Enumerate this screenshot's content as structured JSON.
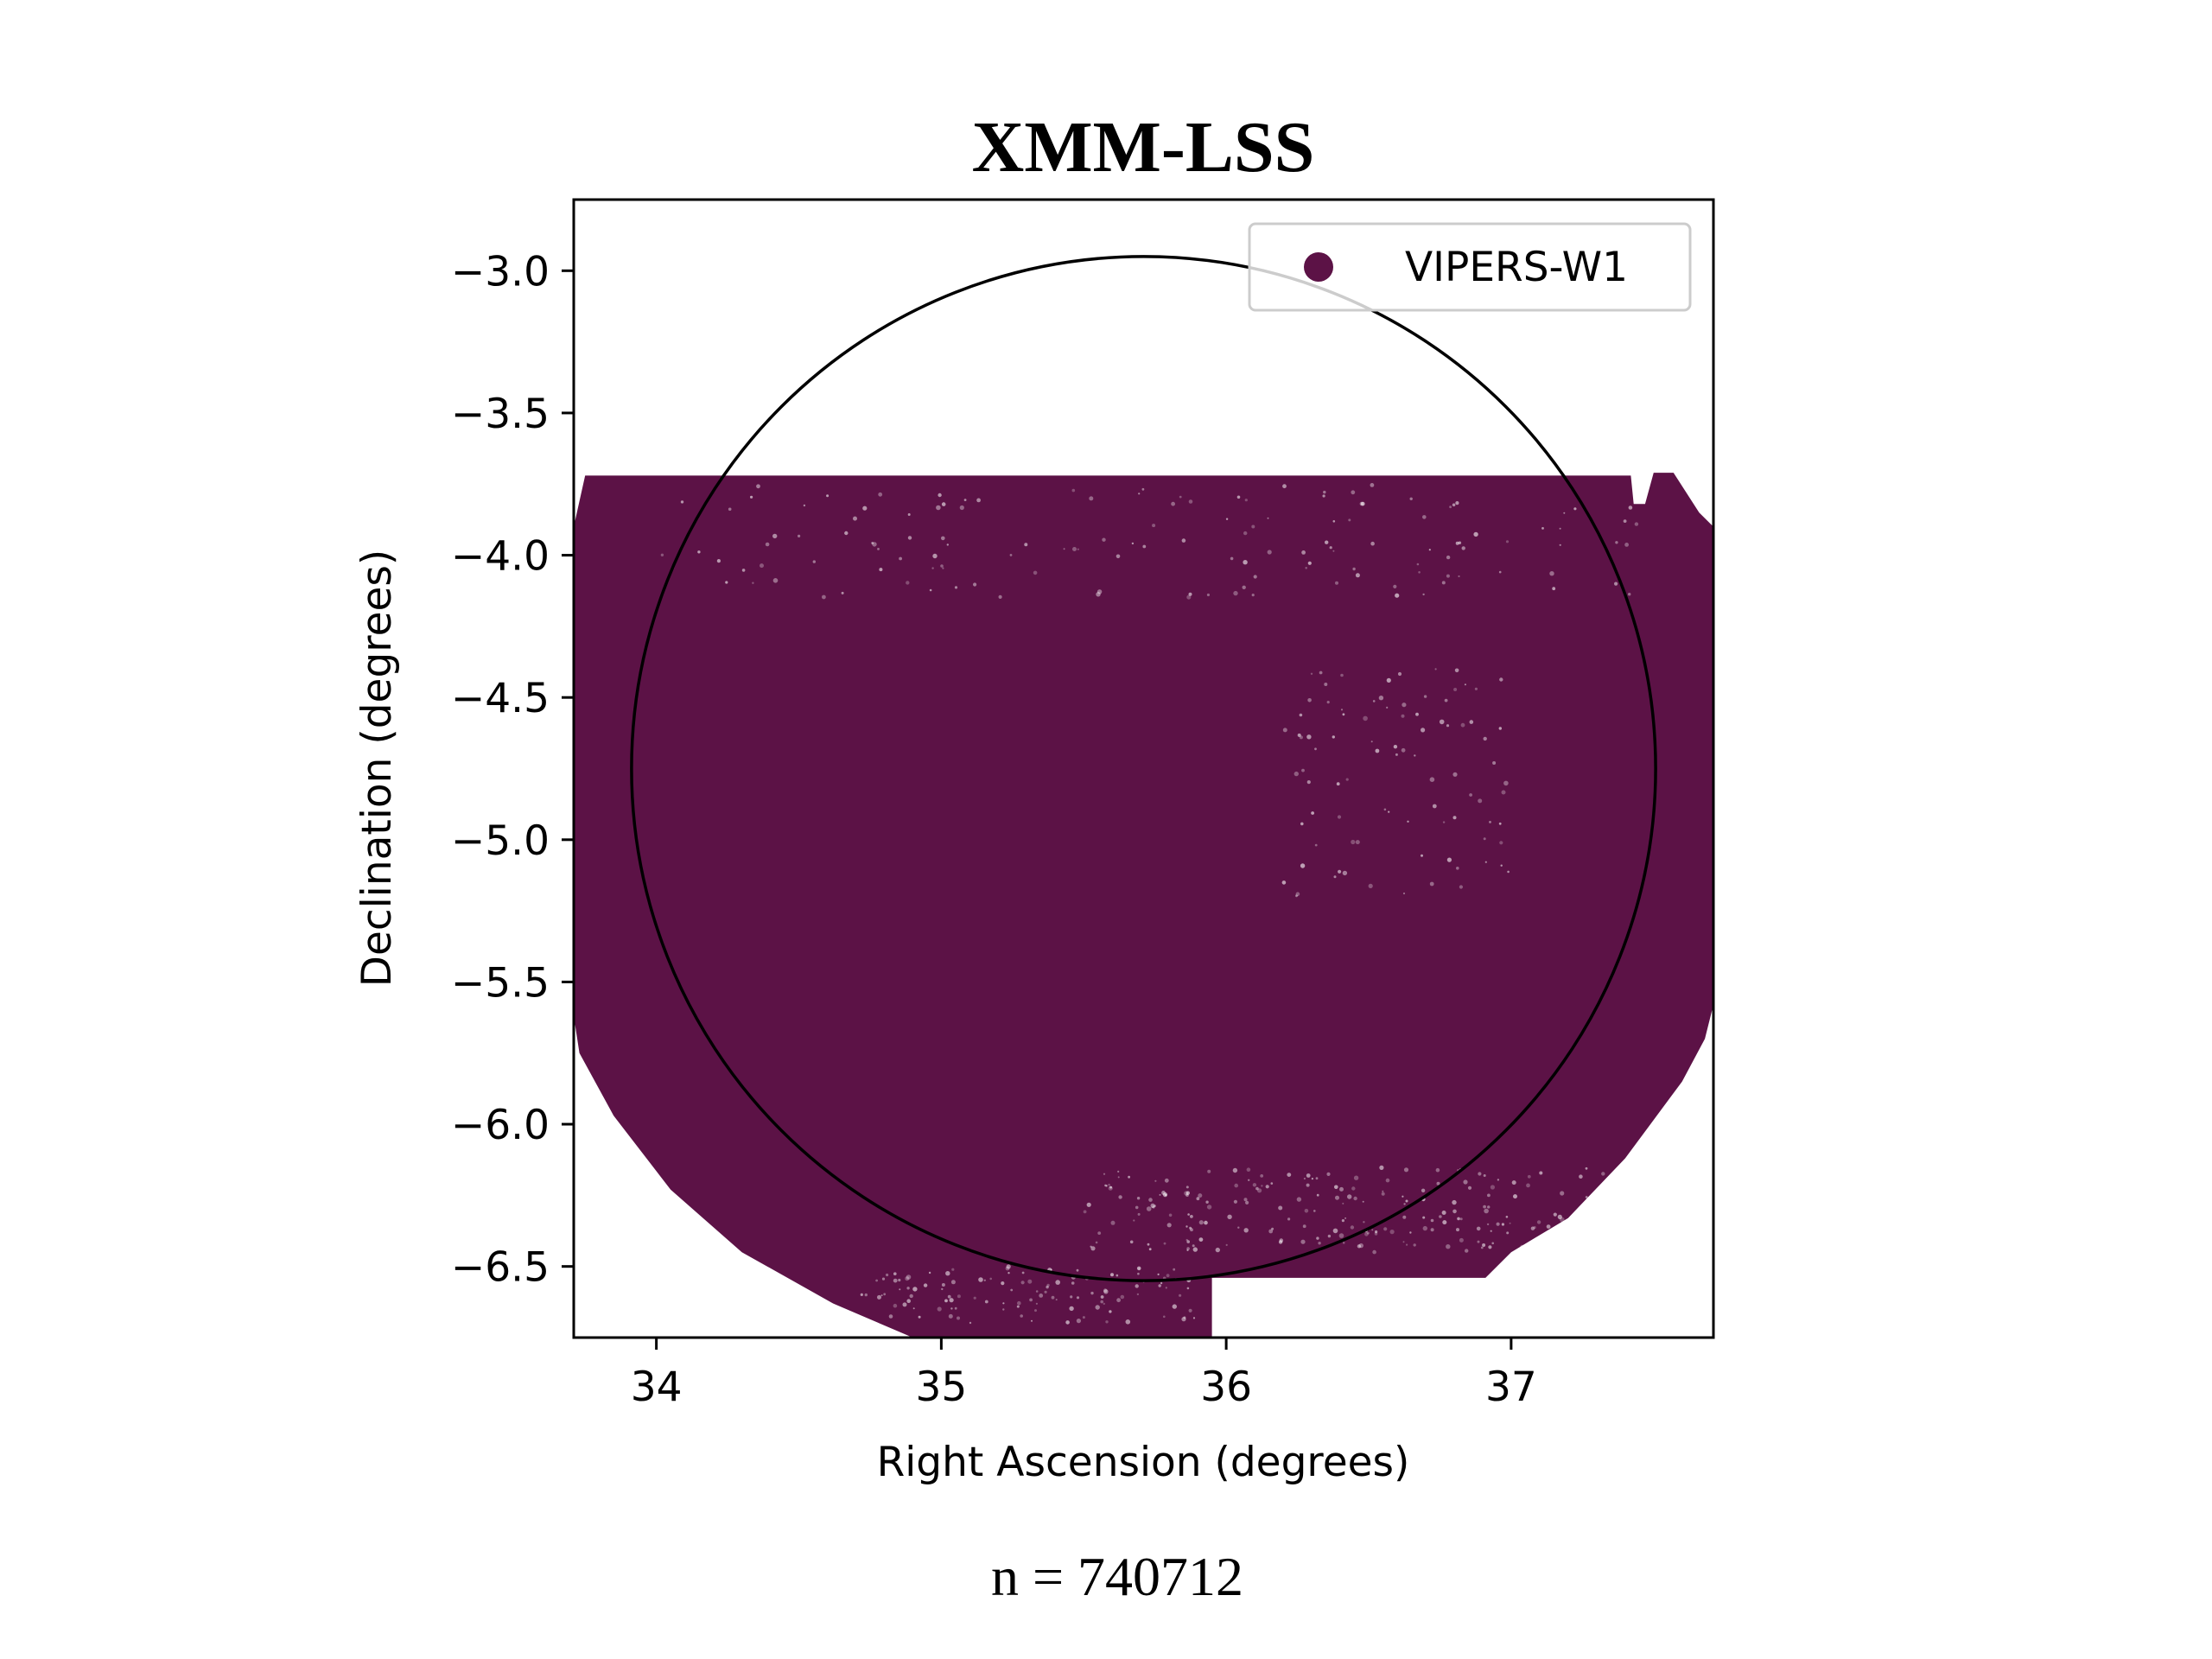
{
  "chart_data": {
    "type": "scatter",
    "title": "XMM-LSS",
    "xlabel": "Right Ascension (degrees)",
    "ylabel": "Declination (degrees)",
    "xlim": [
      33.71,
      37.71
    ],
    "ylim": [
      -6.75,
      -2.75
    ],
    "xticks": [
      34,
      35,
      36,
      37
    ],
    "xtick_labels": [
      "34",
      "35",
      "36",
      "37"
    ],
    "yticks": [
      -3.0,
      -3.5,
      -4.0,
      -4.5,
      -5.0,
      -5.5,
      -6.0,
      -6.5
    ],
    "ytick_labels": [
      "−3.0",
      "−3.5",
      "−4.0",
      "−4.5",
      "−5.0",
      "−5.5",
      "−6.0",
      "−6.5"
    ],
    "grid": false,
    "legend_placement": "upper right",
    "series": [
      {
        "name": "VIPERS-W1",
        "color": "#5c1246",
        "n": 740712,
        "footprint_outline": [
          [
            33.71,
            -3.9
          ],
          [
            33.75,
            -3.72
          ],
          [
            37.21,
            -3.72
          ],
          [
            37.42,
            -3.72
          ],
          [
            37.43,
            -3.82
          ],
          [
            37.47,
            -3.82
          ],
          [
            37.5,
            -3.71
          ],
          [
            37.57,
            -3.71
          ],
          [
            37.66,
            -3.85
          ],
          [
            37.71,
            -3.9
          ],
          [
            37.71,
            -5.58
          ],
          [
            37.68,
            -5.7
          ],
          [
            37.6,
            -5.85
          ],
          [
            37.4,
            -6.12
          ],
          [
            37.2,
            -6.33
          ],
          [
            37.0,
            -6.45
          ],
          [
            36.91,
            -6.54
          ],
          [
            36.69,
            -6.54
          ],
          [
            36.42,
            -6.54
          ],
          [
            36.2,
            -6.54
          ],
          [
            35.95,
            -6.54
          ],
          [
            35.95,
            -6.75
          ],
          [
            35.1,
            -6.75
          ],
          [
            34.9,
            -6.75
          ],
          [
            34.62,
            -6.63
          ],
          [
            34.3,
            -6.45
          ],
          [
            34.05,
            -6.23
          ],
          [
            33.85,
            -5.97
          ],
          [
            33.73,
            -5.75
          ],
          [
            33.71,
            -5.62
          ]
        ]
      }
    ],
    "reference_circle": {
      "center": [
        35.71,
        -4.75
      ],
      "radius_deg": 1.8,
      "color": "#000000"
    }
  },
  "footer": {
    "n_label": "n = 740712"
  }
}
